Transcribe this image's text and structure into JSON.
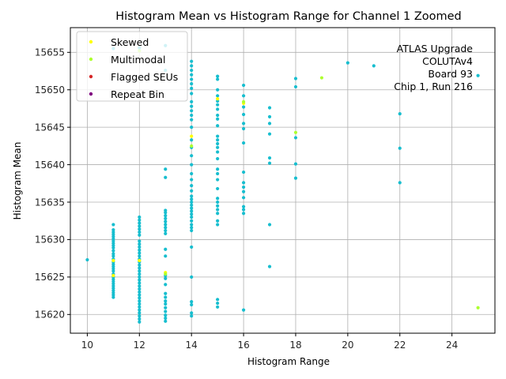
{
  "chart_data": {
    "type": "scatter",
    "title": "Histogram Mean vs Histogram Range for Channel 1 Zoomed",
    "xlabel": "Histogram Range",
    "ylabel": "Histogram Mean",
    "xlim": [
      9.35,
      25.65
    ],
    "ylim": [
      15617.5,
      15658.3
    ],
    "xticks": [
      10,
      12,
      14,
      16,
      18,
      20,
      22,
      24
    ],
    "yticks": [
      15620,
      15625,
      15630,
      15635,
      15640,
      15645,
      15650,
      15655
    ],
    "grid": true,
    "legend_placement": "top-left",
    "annotation": [
      "ATLAS Upgrade",
      "COLUTAv4",
      "Board 93",
      "Chip 1, Run 216"
    ],
    "legend": [
      {
        "name": "Skewed",
        "color": "#ffff00"
      },
      {
        "name": "Multimodal",
        "color": "#adff2f"
      },
      {
        "name": "Flagged SEUs",
        "color": "#d62728"
      },
      {
        "name": "Repeat Bin",
        "color": "#800080"
      }
    ],
    "normal_color": "#17becf",
    "series": [
      {
        "name": "Normal",
        "color": "#17becf",
        "points": [
          [
            10,
            15627.3
          ],
          [
            11,
            15622.3
          ],
          [
            11,
            15622.6
          ],
          [
            11,
            15622.9
          ],
          [
            11,
            15623.2
          ],
          [
            11,
            15623.5
          ],
          [
            11,
            15623.8
          ],
          [
            11,
            15624.1
          ],
          [
            11,
            15624.4
          ],
          [
            11,
            15624.7
          ],
          [
            11,
            15625.0
          ],
          [
            11,
            15625.4
          ],
          [
            11,
            15625.8
          ],
          [
            11,
            15626.1
          ],
          [
            11,
            15626.4
          ],
          [
            11,
            15626.7
          ],
          [
            11,
            15627.0
          ],
          [
            11,
            15627.4
          ],
          [
            11,
            15627.8
          ],
          [
            11,
            15628.1
          ],
          [
            11,
            15628.5
          ],
          [
            11,
            15628.9
          ],
          [
            11,
            15629.2
          ],
          [
            11,
            15629.5
          ],
          [
            11,
            15629.8
          ],
          [
            11,
            15630.1
          ],
          [
            11,
            15630.4
          ],
          [
            11,
            15630.7
          ],
          [
            11,
            15631.0
          ],
          [
            11,
            15631.3
          ],
          [
            11,
            15632.0
          ],
          [
            11,
            15655.5
          ],
          [
            12,
            15619.0
          ],
          [
            12,
            15619.4
          ],
          [
            12,
            15619.8
          ],
          [
            12,
            15620.2
          ],
          [
            12,
            15620.6
          ],
          [
            12,
            15621.0
          ],
          [
            12,
            15621.4
          ],
          [
            12,
            15621.8
          ],
          [
            12,
            15622.2
          ],
          [
            12,
            15622.6
          ],
          [
            12,
            15623.0
          ],
          [
            12,
            15623.4
          ],
          [
            12,
            15623.8
          ],
          [
            12,
            15624.2
          ],
          [
            12,
            15624.6
          ],
          [
            12,
            15625.0
          ],
          [
            12,
            15625.4
          ],
          [
            12,
            15625.8
          ],
          [
            12,
            15626.2
          ],
          [
            12,
            15626.6
          ],
          [
            12,
            15627.0
          ],
          [
            12,
            15627.4
          ],
          [
            12,
            15627.8
          ],
          [
            12,
            15628.2
          ],
          [
            12,
            15628.6
          ],
          [
            12,
            15629.0
          ],
          [
            12,
            15629.4
          ],
          [
            12,
            15629.8
          ],
          [
            12,
            15630.6
          ],
          [
            12,
            15631.0
          ],
          [
            12,
            15631.4
          ],
          [
            12,
            15631.8
          ],
          [
            12,
            15632.2
          ],
          [
            12,
            15632.6
          ],
          [
            12,
            15633.0
          ],
          [
            12,
            15655.6
          ],
          [
            13,
            15619.1
          ],
          [
            13,
            15619.5
          ],
          [
            13,
            15619.9
          ],
          [
            13,
            15620.4
          ],
          [
            13,
            15620.9
          ],
          [
            13,
            15621.4
          ],
          [
            13,
            15621.8
          ],
          [
            13,
            15622.3
          ],
          [
            13,
            15622.8
          ],
          [
            13,
            15624.0
          ],
          [
            13,
            15624.8
          ],
          [
            13,
            15625.2
          ],
          [
            13,
            15627.8
          ],
          [
            13,
            15628.7
          ],
          [
            13,
            15630.8
          ],
          [
            13,
            15631.2
          ],
          [
            13,
            15631.6
          ],
          [
            13,
            15632.0
          ],
          [
            13,
            15632.4
          ],
          [
            13,
            15632.8
          ],
          [
            13,
            15633.2
          ],
          [
            13,
            15633.6
          ],
          [
            13,
            15633.9
          ],
          [
            13,
            15638.3
          ],
          [
            13,
            15639.4
          ],
          [
            13,
            15652.6
          ],
          [
            13,
            15655.9
          ],
          [
            14,
            15619.8
          ],
          [
            14,
            15620.2
          ],
          [
            14,
            15621.3
          ],
          [
            14,
            15621.7
          ],
          [
            14,
            15625.0
          ],
          [
            14,
            15629.0
          ],
          [
            14,
            15631.2
          ],
          [
            14,
            15631.6
          ],
          [
            14,
            15632.0
          ],
          [
            14,
            15632.5
          ],
          [
            14,
            15633.0
          ],
          [
            14,
            15633.4
          ],
          [
            14,
            15633.8
          ],
          [
            14,
            15634.2
          ],
          [
            14,
            15634.6
          ],
          [
            14,
            15635.0
          ],
          [
            14,
            15635.4
          ],
          [
            14,
            15635.8
          ],
          [
            14,
            15636.5
          ],
          [
            14,
            15637.2
          ],
          [
            14,
            15638.0
          ],
          [
            14,
            15638.8
          ],
          [
            14,
            15640.0
          ],
          [
            14,
            15641.2
          ],
          [
            14,
            15642.3
          ],
          [
            14,
            15643.3
          ],
          [
            14,
            15645.0
          ],
          [
            14,
            15646.0
          ],
          [
            14,
            15646.6
          ],
          [
            14,
            15647.2
          ],
          [
            14,
            15647.8
          ],
          [
            14,
            15648.4
          ],
          [
            14,
            15649.5
          ],
          [
            14,
            15650.2
          ],
          [
            14,
            15650.8
          ],
          [
            14,
            15651.4
          ],
          [
            14,
            15652.0
          ],
          [
            14,
            15652.6
          ],
          [
            14,
            15653.2
          ],
          [
            14,
            15653.8
          ],
          [
            15,
            15621.0
          ],
          [
            15,
            15621.5
          ],
          [
            15,
            15622.0
          ],
          [
            15,
            15632.0
          ],
          [
            15,
            15632.5
          ],
          [
            15,
            15633.5
          ],
          [
            15,
            15634.0
          ],
          [
            15,
            15634.5
          ],
          [
            15,
            15635.0
          ],
          [
            15,
            15635.5
          ],
          [
            15,
            15636.8
          ],
          [
            15,
            15638.0
          ],
          [
            15,
            15638.8
          ],
          [
            15,
            15639.4
          ],
          [
            15,
            15640.8
          ],
          [
            15,
            15641.7
          ],
          [
            15,
            15642.3
          ],
          [
            15,
            15642.8
          ],
          [
            15,
            15643.3
          ],
          [
            15,
            15643.8
          ],
          [
            15,
            15645.2
          ],
          [
            15,
            15646.1
          ],
          [
            15,
            15646.6
          ],
          [
            15,
            15647.4
          ],
          [
            15,
            15648.0
          ],
          [
            15,
            15648.5
          ],
          [
            15,
            15649.2
          ],
          [
            15,
            15650.0
          ],
          [
            15,
            15651.4
          ],
          [
            15,
            15651.8
          ],
          [
            16,
            15620.6
          ],
          [
            16,
            15633.5
          ],
          [
            16,
            15634.0
          ],
          [
            16,
            15634.4
          ],
          [
            16,
            15635.6
          ],
          [
            16,
            15636.4
          ],
          [
            16,
            15637.0
          ],
          [
            16,
            15637.6
          ],
          [
            16,
            15639.0
          ],
          [
            16,
            15642.9
          ],
          [
            16,
            15644.8
          ],
          [
            16,
            15645.5
          ],
          [
            16,
            15646.7
          ],
          [
            16,
            15647.7
          ],
          [
            16,
            15649.2
          ],
          [
            16,
            15650.6
          ],
          [
            17,
            15626.4
          ],
          [
            17,
            15632.0
          ],
          [
            17,
            15640.2
          ],
          [
            17,
            15640.9
          ],
          [
            17,
            15644.1
          ],
          [
            17,
            15645.5
          ],
          [
            17,
            15646.4
          ],
          [
            17,
            15647.6
          ],
          [
            18,
            15638.2
          ],
          [
            18,
            15640.1
          ],
          [
            18,
            15643.6
          ],
          [
            18,
            15650.4
          ],
          [
            18,
            15651.5
          ],
          [
            20,
            15653.6
          ],
          [
            21,
            15653.2
          ],
          [
            22,
            15637.6
          ],
          [
            22,
            15642.2
          ],
          [
            22,
            15646.8
          ],
          [
            25,
            15651.9
          ]
        ]
      },
      {
        "name": "Skewed",
        "color": "#ffff00",
        "points": [
          [
            11,
            15625.2
          ],
          [
            11,
            15627.2
          ],
          [
            12,
            15627.2
          ],
          [
            13,
            15625.6
          ],
          [
            14,
            15643.8
          ],
          [
            15,
            15648.8
          ],
          [
            16,
            15648.2
          ]
        ]
      },
      {
        "name": "Multimodal",
        "color": "#adff2f",
        "points": [
          [
            12,
            15655.2
          ],
          [
            13,
            15625.4
          ],
          [
            14,
            15642.5
          ],
          [
            16,
            15648.4
          ],
          [
            18,
            15644.3
          ],
          [
            19,
            15651.6
          ],
          [
            25,
            15620.9
          ]
        ]
      }
    ]
  }
}
